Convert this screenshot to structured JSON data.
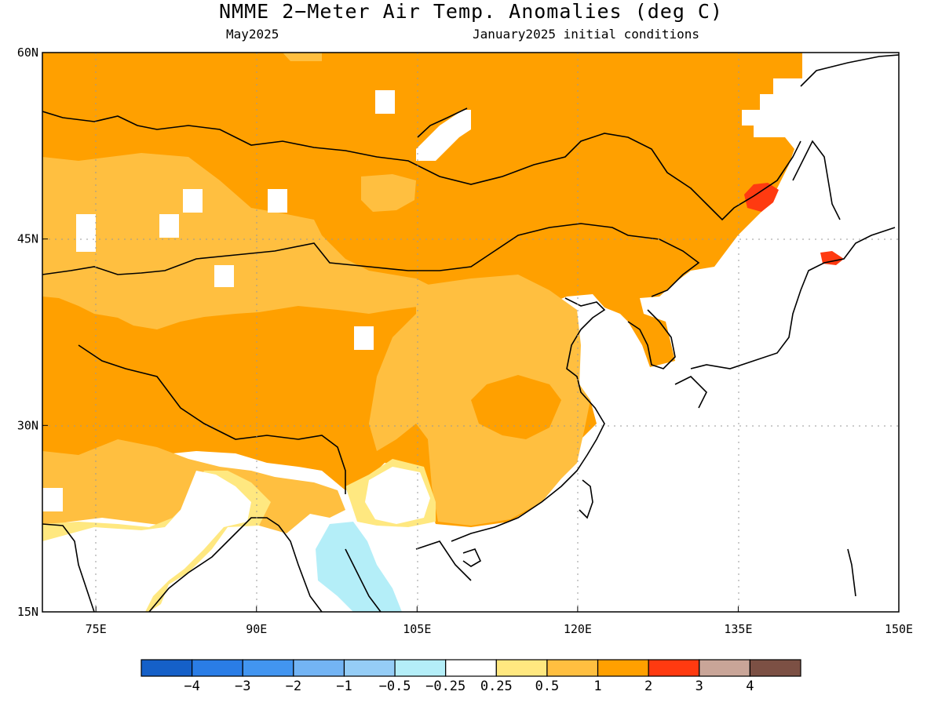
{
  "title": "NMME 2−Meter Air Temp. Anomalies (deg C)",
  "subtitle_left": "May2025",
  "subtitle_right": "January2025 initial conditions",
  "map": {
    "lon_range": [
      70,
      150
    ],
    "lat_range": [
      15,
      60
    ],
    "lon_ticks": [
      {
        "value": 75,
        "label": "75E"
      },
      {
        "value": 90,
        "label": "90E"
      },
      {
        "value": 105,
        "label": "105E"
      },
      {
        "value": 120,
        "label": "120E"
      },
      {
        "value": 135,
        "label": "135E"
      },
      {
        "value": 150,
        "label": "150E"
      }
    ],
    "lat_ticks": [
      {
        "value": 15,
        "label": "15N"
      },
      {
        "value": 30,
        "label": "30N"
      },
      {
        "value": 45,
        "label": "45N"
      },
      {
        "value": 60,
        "label": "60N"
      }
    ]
  },
  "colorbar": {
    "labels": [
      "−4",
      "−3",
      "−2",
      "−1",
      "−0.5",
      "−0.25",
      "0.25",
      "0.5",
      "1",
      "2",
      "3",
      "4"
    ],
    "colors": [
      "#1560c8",
      "#2a7de6",
      "#4295f0",
      "#73b4f4",
      "#95cdf6",
      "#b4eef8",
      "#ffffff",
      "#ffe880",
      "#ffbf40",
      "#ffa000",
      "#ff3a10",
      "#c9a598",
      "#7c5044"
    ]
  }
}
